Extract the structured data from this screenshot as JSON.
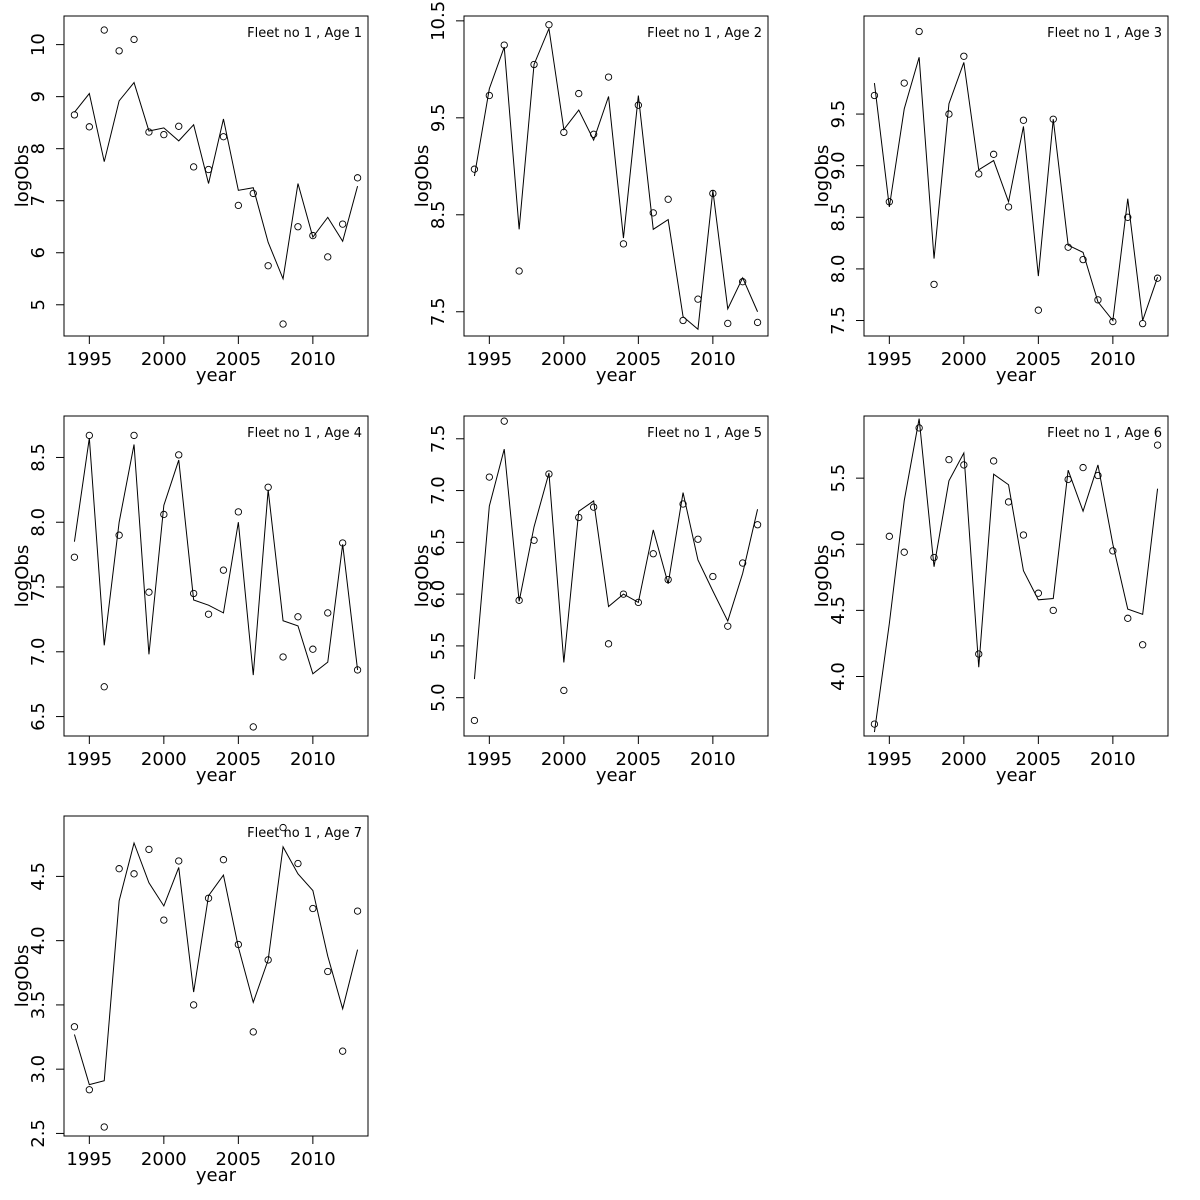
{
  "chart_data": [
    {
      "type": "line",
      "title": "Fleet no 1 , Age 1",
      "xlabel": "year",
      "ylabel": "logObs",
      "xlim": [
        1993.3,
        2013.7
      ],
      "ylim": [
        4.4,
        10.55
      ],
      "xticks": [
        1995,
        2000,
        2005,
        2010
      ],
      "xtick_labels": [
        "1995",
        "2000",
        "2005",
        "2010"
      ],
      "yticks": [
        5,
        6,
        7,
        8,
        9,
        10
      ],
      "ytick_labels": [
        "5",
        "6",
        "7",
        "8",
        "9",
        "10"
      ],
      "x": [
        1994,
        1995,
        1996,
        1997,
        1998,
        1999,
        2000,
        2001,
        2002,
        2003,
        2004,
        2005,
        2006,
        2007,
        2008,
        2009,
        2010,
        2011,
        2012,
        2013
      ],
      "series": [
        {
          "style": "points",
          "values": [
            8.65,
            8.42,
            10.28,
            9.88,
            10.1,
            8.32,
            8.27,
            8.43,
            7.65,
            7.6,
            8.23,
            6.91,
            7.14,
            5.75,
            4.63,
            6.5,
            6.33,
            5.92,
            6.55,
            7.44
          ]
        },
        {
          "style": "line",
          "values": [
            8.7,
            9.06,
            7.75,
            8.92,
            9.27,
            8.34,
            8.4,
            8.15,
            8.46,
            7.33,
            8.57,
            7.2,
            7.25,
            6.2,
            5.5,
            7.33,
            6.3,
            6.68,
            6.22,
            7.28
          ]
        }
      ]
    },
    {
      "type": "line",
      "title": "Fleet no 1 , Age 2",
      "xlabel": "year",
      "ylabel": "logObs",
      "xlim": [
        1993.3,
        2013.7
      ],
      "ylim": [
        7.25,
        10.55
      ],
      "xticks": [
        1995,
        2000,
        2005,
        2010
      ],
      "xtick_labels": [
        "1995",
        "2000",
        "2005",
        "2010"
      ],
      "yticks": [
        7.5,
        8.5,
        9.5,
        10.5
      ],
      "ytick_labels": [
        "7.5",
        "8.5",
        "9.5",
        "10.5"
      ],
      "x": [
        1994,
        1995,
        1996,
        1997,
        1998,
        1999,
        2000,
        2001,
        2002,
        2003,
        2004,
        2005,
        2006,
        2007,
        2008,
        2009,
        2010,
        2011,
        2012,
        2013
      ],
      "series": [
        {
          "style": "points",
          "values": [
            8.97,
            9.73,
            10.25,
            7.92,
            10.05,
            10.46,
            9.35,
            9.75,
            9.33,
            9.92,
            8.2,
            9.63,
            8.52,
            8.66,
            7.41,
            7.63,
            8.72,
            7.38,
            7.81,
            7.39
          ]
        },
        {
          "style": "line",
          "values": [
            8.9,
            9.8,
            10.23,
            8.35,
            10.05,
            10.42,
            9.38,
            9.58,
            9.27,
            9.72,
            8.26,
            9.73,
            8.35,
            8.45,
            7.45,
            7.32,
            8.75,
            7.53,
            7.85,
            7.5
          ]
        }
      ]
    },
    {
      "type": "line",
      "title": "Fleet no 1 , Age 3",
      "xlabel": "year",
      "ylabel": "logObs",
      "xlim": [
        1993.3,
        2013.7
      ],
      "ylim": [
        7.35,
        10.45
      ],
      "xticks": [
        1995,
        2000,
        2005,
        2010
      ],
      "xtick_labels": [
        "1995",
        "2000",
        "2005",
        "2010"
      ],
      "yticks": [
        7.5,
        8.0,
        8.5,
        9.0,
        9.5
      ],
      "ytick_labels": [
        "7.5",
        "8.0",
        "8.5",
        "9.0",
        "9.5"
      ],
      "x": [
        1994,
        1995,
        1996,
        1997,
        1998,
        1999,
        2000,
        2001,
        2002,
        2003,
        2004,
        2005,
        2006,
        2007,
        2008,
        2009,
        2010,
        2011,
        2012,
        2013
      ],
      "series": [
        {
          "style": "points",
          "values": [
            9.68,
            8.65,
            9.8,
            10.3,
            7.85,
            9.5,
            10.06,
            8.92,
            9.11,
            8.6,
            9.44,
            7.6,
            9.45,
            8.21,
            8.09,
            7.7,
            7.49,
            8.5,
            7.47,
            7.91
          ]
        },
        {
          "style": "line",
          "values": [
            9.8,
            8.6,
            9.55,
            10.05,
            8.1,
            9.6,
            10.0,
            8.96,
            9.05,
            8.65,
            9.38,
            7.93,
            9.45,
            8.23,
            8.16,
            7.68,
            7.5,
            8.68,
            7.5,
            7.92
          ]
        }
      ]
    },
    {
      "type": "line",
      "title": "Fleet no 1 , Age 4",
      "xlabel": "year",
      "ylabel": "logObs",
      "xlim": [
        1993.3,
        2013.7
      ],
      "ylim": [
        6.35,
        8.82
      ],
      "xticks": [
        1995,
        2000,
        2005,
        2010
      ],
      "xtick_labels": [
        "1995",
        "2000",
        "2005",
        "2010"
      ],
      "yticks": [
        6.5,
        7.0,
        7.5,
        8.0,
        8.5
      ],
      "ytick_labels": [
        "6.5",
        "7.0",
        "7.5",
        "8.0",
        "8.5"
      ],
      "x": [
        1994,
        1995,
        1996,
        1997,
        1998,
        1999,
        2000,
        2001,
        2002,
        2003,
        2004,
        2005,
        2006,
        2007,
        2008,
        2009,
        2010,
        2011,
        2012,
        2013
      ],
      "series": [
        {
          "style": "points",
          "values": [
            7.73,
            8.67,
            6.73,
            7.9,
            8.67,
            7.46,
            8.06,
            8.52,
            7.45,
            7.29,
            7.63,
            8.08,
            6.42,
            8.27,
            6.96,
            7.27,
            7.02,
            7.3,
            7.84,
            6.86
          ]
        },
        {
          "style": "line",
          "values": [
            7.85,
            8.65,
            7.05,
            8.0,
            8.6,
            6.98,
            8.13,
            8.48,
            7.4,
            7.36,
            7.3,
            8.0,
            6.82,
            8.25,
            7.24,
            7.2,
            6.83,
            6.92,
            7.83,
            6.86
          ]
        }
      ]
    },
    {
      "type": "line",
      "title": "Fleet no 1 , Age 5",
      "xlabel": "year",
      "ylabel": "logObs",
      "xlim": [
        1993.3,
        2013.7
      ],
      "ylim": [
        4.63,
        7.72
      ],
      "xticks": [
        1995,
        2000,
        2005,
        2010
      ],
      "xtick_labels": [
        "1995",
        "2000",
        "2005",
        "2010"
      ],
      "yticks": [
        5.0,
        5.5,
        6.0,
        6.5,
        7.0,
        7.5
      ],
      "ytick_labels": [
        "5.0",
        "5.5",
        "6.0",
        "6.5",
        "7.0",
        "7.5"
      ],
      "x": [
        1994,
        1995,
        1996,
        1997,
        1998,
        1999,
        2000,
        2001,
        2002,
        2003,
        2004,
        2005,
        2006,
        2007,
        2008,
        2009,
        2010,
        2011,
        2012,
        2013
      ],
      "series": [
        {
          "style": "points",
          "values": [
            4.78,
            7.13,
            7.67,
            5.94,
            6.52,
            7.16,
            5.07,
            6.74,
            6.84,
            5.52,
            6.0,
            5.92,
            6.39,
            6.14,
            6.87,
            6.53,
            6.17,
            5.69,
            6.3,
            6.67
          ]
        },
        {
          "style": "line",
          "values": [
            5.18,
            6.85,
            7.4,
            5.93,
            6.65,
            7.17,
            5.34,
            6.8,
            6.9,
            5.88,
            6.0,
            5.92,
            6.62,
            6.1,
            6.98,
            6.33,
            6.03,
            5.74,
            6.2,
            6.82
          ]
        }
      ]
    },
    {
      "type": "line",
      "title": "Fleet no 1 , Age 6",
      "xlabel": "year",
      "ylabel": "logObs",
      "xlim": [
        1993.3,
        2013.7
      ],
      "ylim": [
        3.55,
        5.97
      ],
      "xticks": [
        1995,
        2000,
        2005,
        2010
      ],
      "xtick_labels": [
        "1995",
        "2000",
        "2005",
        "2010"
      ],
      "yticks": [
        4.0,
        4.5,
        5.0,
        5.5
      ],
      "ytick_labels": [
        "4.0",
        "4.5",
        "5.0",
        "5.5"
      ],
      "x": [
        1994,
        1995,
        1996,
        1997,
        1998,
        1999,
        2000,
        2001,
        2002,
        2003,
        2004,
        2005,
        2006,
        2007,
        2008,
        2009,
        2010,
        2011,
        2012,
        2013
      ],
      "series": [
        {
          "style": "points",
          "values": [
            3.64,
            5.06,
            4.94,
            5.88,
            4.9,
            5.64,
            5.6,
            4.17,
            5.63,
            5.32,
            5.07,
            4.63,
            4.5,
            5.49,
            5.58,
            5.52,
            4.95,
            4.44,
            4.24,
            5.75
          ]
        },
        {
          "style": "line",
          "values": [
            3.58,
            4.4,
            5.33,
            5.95,
            4.83,
            5.48,
            5.69,
            4.07,
            5.53,
            5.45,
            4.8,
            4.58,
            4.59,
            5.56,
            5.25,
            5.6,
            5.0,
            4.51,
            4.47,
            5.42
          ]
        }
      ]
    },
    {
      "type": "line",
      "title": "Fleet no 1 , Age 7",
      "xlabel": "year",
      "ylabel": "logObs",
      "xlim": [
        1993.3,
        2013.7
      ],
      "ylim": [
        2.48,
        4.97
      ],
      "xticks": [
        1995,
        2000,
        2005,
        2010
      ],
      "xtick_labels": [
        "1995",
        "2000",
        "2005",
        "2010"
      ],
      "yticks": [
        2.5,
        3.0,
        3.5,
        4.0,
        4.5
      ],
      "ytick_labels": [
        "2.5",
        "3.0",
        "3.5",
        "4.0",
        "4.5"
      ],
      "x": [
        1994,
        1995,
        1996,
        1997,
        1998,
        1999,
        2000,
        2001,
        2002,
        2003,
        2004,
        2005,
        2006,
        2007,
        2008,
        2009,
        2010,
        2011,
        2012,
        2013
      ],
      "series": [
        {
          "style": "points",
          "values": [
            3.33,
            2.84,
            2.55,
            4.56,
            4.52,
            4.71,
            4.16,
            4.62,
            3.5,
            4.33,
            4.63,
            3.97,
            3.29,
            3.85,
            4.88,
            4.6,
            4.25,
            3.76,
            3.14,
            4.23
          ]
        },
        {
          "style": "line",
          "values": [
            3.27,
            2.88,
            2.91,
            4.31,
            4.76,
            4.45,
            4.27,
            4.57,
            3.6,
            4.35,
            4.51,
            3.95,
            3.52,
            3.85,
            4.73,
            4.52,
            4.39,
            3.88,
            3.47,
            3.93
          ]
        }
      ]
    }
  ]
}
